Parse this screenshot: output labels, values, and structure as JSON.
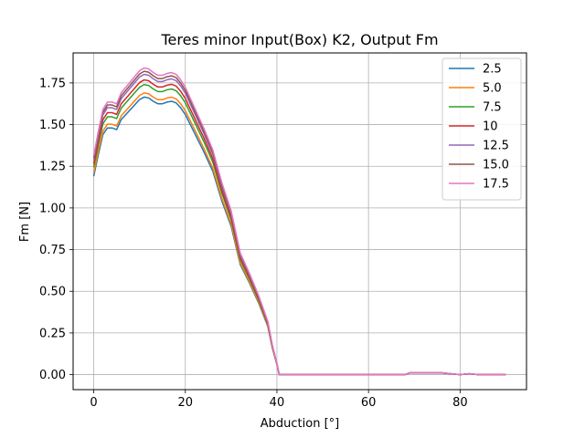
{
  "chart_data": {
    "type": "line",
    "title": "Teres minor Input(Box) K2, Output Fm",
    "xlabel": "Abduction [°]",
    "ylabel": "Fm [N]",
    "xlim": [
      -4.5,
      94.5
    ],
    "ylim": [
      -0.09,
      1.93
    ],
    "xticks": [
      0,
      20,
      40,
      60,
      80
    ],
    "xtick_labels": [
      "0",
      "20",
      "40",
      "60",
      "80"
    ],
    "yticks": [
      0.0,
      0.25,
      0.5,
      0.75,
      1.0,
      1.25,
      1.5,
      1.75
    ],
    "ytick_labels": [
      "0.00",
      "0.25",
      "0.50",
      "0.75",
      "1.00",
      "1.25",
      "1.50",
      "1.75"
    ],
    "grid": true,
    "legend_position": "upper right",
    "base_x": [
      0,
      1,
      2,
      3,
      4,
      5,
      6,
      8,
      10,
      11,
      12,
      13,
      14,
      15,
      16,
      17,
      18,
      19,
      20,
      22,
      24,
      26,
      28,
      30,
      32,
      34,
      36,
      38,
      39,
      40,
      40.5,
      41,
      50,
      60,
      68,
      69,
      72,
      76,
      80,
      82,
      84,
      86,
      88,
      90
    ],
    "base_y": [
      1.19,
      1.32,
      1.44,
      1.48,
      1.48,
      1.47,
      1.53,
      1.59,
      1.65,
      1.665,
      1.66,
      1.64,
      1.625,
      1.625,
      1.635,
      1.64,
      1.63,
      1.6,
      1.56,
      1.45,
      1.34,
      1.22,
      1.04,
      0.89,
      0.66,
      0.55,
      0.43,
      0.29,
      0.16,
      0.06,
      0.0,
      0.0,
      0.0,
      0.0,
      0.0,
      0.01,
      0.01,
      0.01,
      0.0,
      0.005,
      0.0,
      0.0,
      0.0,
      0.0
    ],
    "series": [
      {
        "name": "2.5",
        "color": "#1f77b4",
        "scale": 1.0
      },
      {
        "name": "5.0",
        "color": "#ff7f0e",
        "scale": 1.015
      },
      {
        "name": "7.5",
        "color": "#2ca02c",
        "scale": 1.045
      },
      {
        "name": "10",
        "color": "#d62728",
        "scale": 1.062
      },
      {
        "name": "12.5",
        "color": "#9467bd",
        "scale": 1.082
      },
      {
        "name": "15.0",
        "color": "#8c564b",
        "scale": 1.093
      },
      {
        "name": "17.5",
        "color": "#e377c2",
        "scale": 1.105
      }
    ]
  }
}
